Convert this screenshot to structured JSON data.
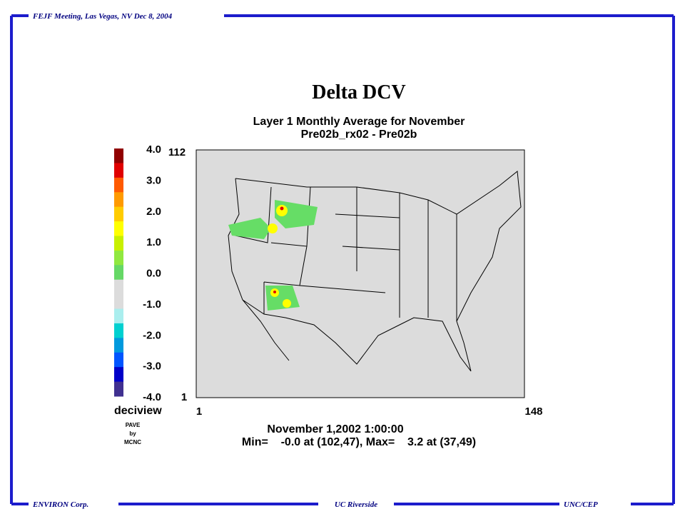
{
  "header": {
    "meeting": "FEJF Meeting, Las Vegas, NV Dec 8, 2004"
  },
  "footer": {
    "left": "ENVIRON Corp.",
    "center": "UC Riverside",
    "right": "UNC/CEP"
  },
  "plot": {
    "title": "Delta DCV",
    "subtitle": [
      "Layer 1 Monthly Average for November",
      "Pre02b_rx02 - Pre02b"
    ],
    "colorbar": {
      "labels": [
        "4.0",
        "3.0",
        "2.0",
        "1.0",
        "0.0",
        "-1.0",
        "-2.0",
        "-3.0",
        "-4.0"
      ],
      "colors": [
        "#900000",
        "#e00000",
        "#ff5a00",
        "#ff9a00",
        "#ffcc00",
        "#ffff00",
        "#c8f000",
        "#90e840",
        "#66d866",
        "#dcdcdc",
        "#dcdcdc",
        "#aaeeee",
        "#00d0d0",
        "#0099dd",
        "#0055ff",
        "#0000c8",
        "#403090"
      ],
      "unit": "deciview"
    },
    "grid_labels": {
      "y_max": "112",
      "y_min": "1",
      "x_min": "1",
      "x_max": "148"
    },
    "credit": [
      "PAVE",
      "by",
      "MCNC"
    ],
    "timestamp": "November 1,2002 1:00:00",
    "stats": "Min=    -0.0 at (102,47), Max=    3.2 at (37,49)"
  }
}
